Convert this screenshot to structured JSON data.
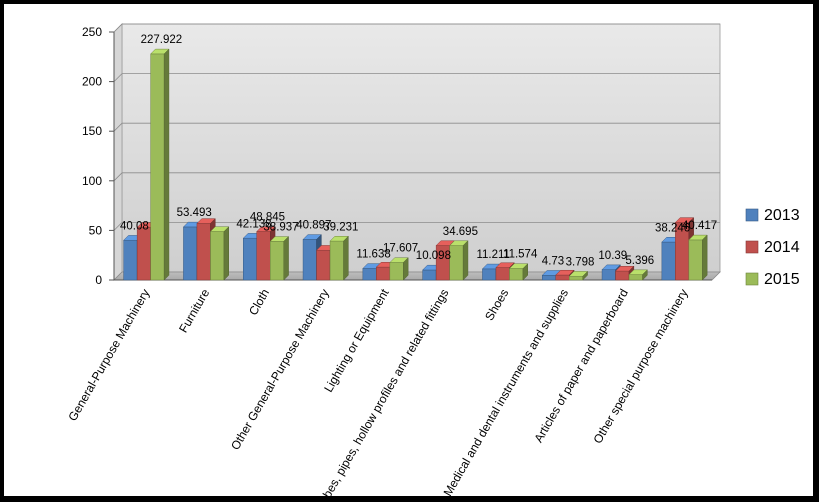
{
  "chart_data": {
    "type": "bar",
    "title": "",
    "xlabel": "",
    "ylabel": "",
    "ylim": [
      0,
      250
    ],
    "yticks": [
      0,
      50,
      100,
      150,
      200,
      250
    ],
    "grid": true,
    "legend_position": "right",
    "categories": [
      "General-Purpose Machinery",
      "Furniture",
      "Cloth",
      "Other General-Purpose Machinery",
      "Lighting or Equipment",
      "Tubes, pipes, hollow profiles and related fittings",
      "Shoes",
      "Medical and dental instruments and supplies",
      "Articles of paper and paperboard",
      "Other special purpose machinery"
    ],
    "series": [
      {
        "name": "2013",
        "color": "#4F81BD",
        "values": [
          40.08,
          53.493,
          42.138,
          40.897,
          11.638,
          10.098,
          11.211,
          4.73,
          10.39,
          38.246
        ],
        "labels": [
          "40.08",
          "53.493",
          "42.138",
          "40.897",
          "11.638",
          "10.098",
          "11.211",
          "4.73",
          "10.39",
          "38.246"
        ]
      },
      {
        "name": "2014",
        "color": "#C0504D",
        "values": [
          53,
          57,
          48.845,
          30,
          13,
          34.695,
          12.5,
          5,
          9,
          58
        ],
        "labels": [
          "",
          "",
          "48.845",
          "",
          "",
          "",
          "",
          "",
          "",
          ""
        ]
      },
      {
        "name": "2015",
        "color": "#9BBB59",
        "values": [
          227.922,
          48.845,
          38.937,
          39.231,
          17.607,
          34.695,
          11.574,
          3.798,
          5.396,
          40.417
        ],
        "labels": [
          "227.922",
          "",
          "38.937",
          "39.231",
          "17.607",
          "34.695",
          "11.574",
          "3.798",
          "5.396",
          "40.417"
        ]
      }
    ]
  }
}
